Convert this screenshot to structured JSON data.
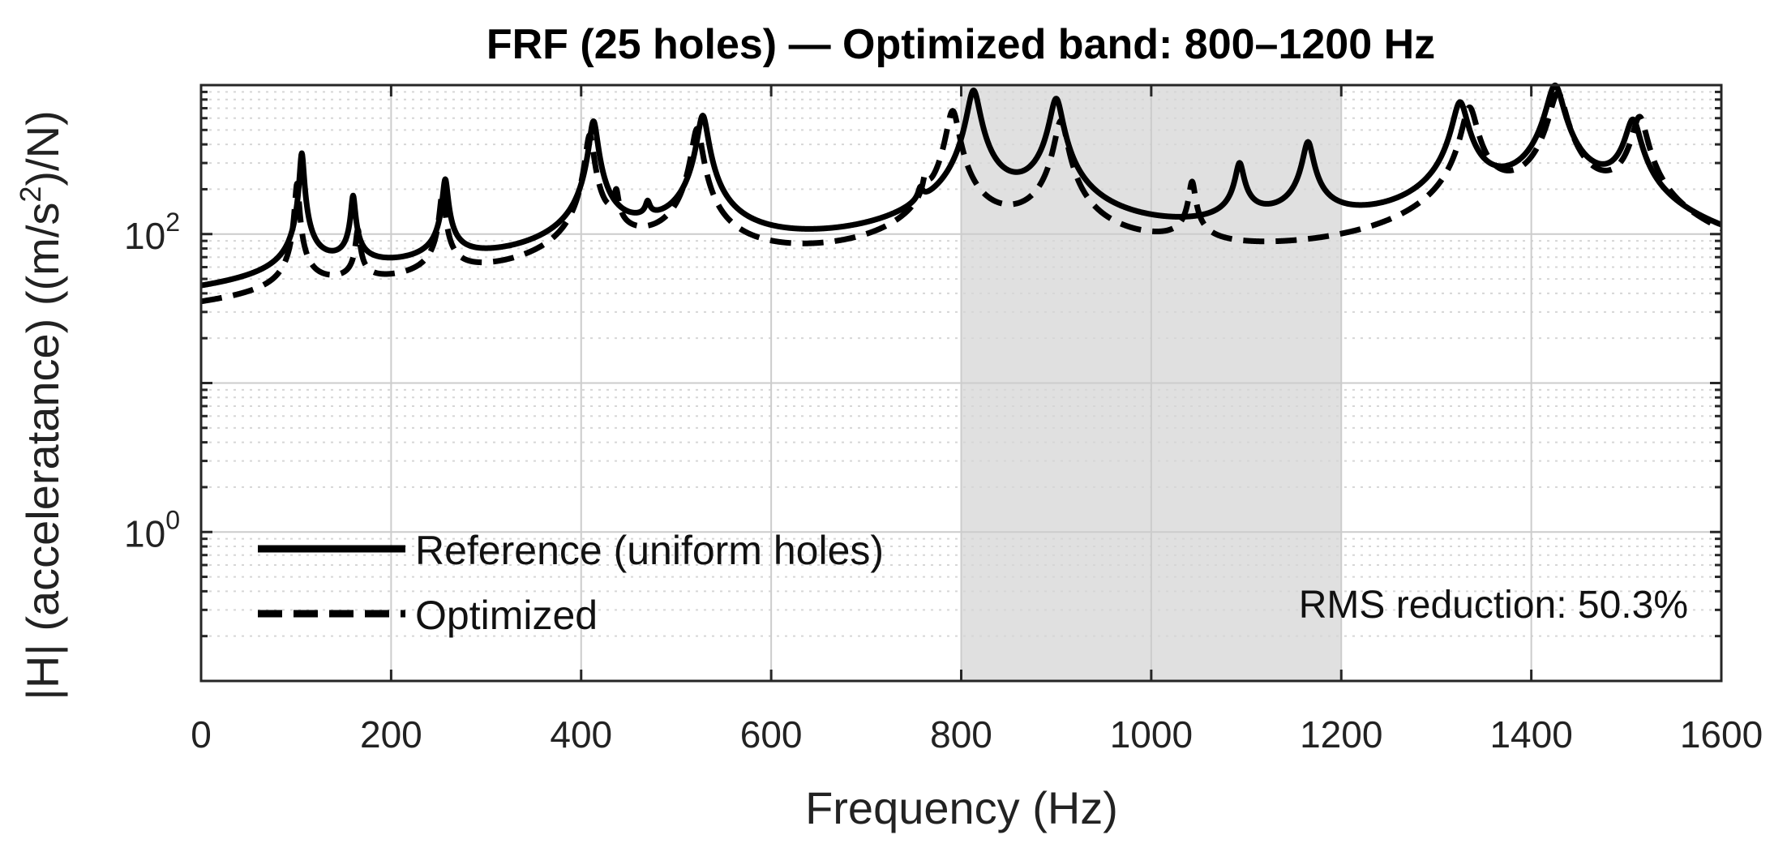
{
  "chart_data": {
    "type": "line",
    "title": "FRF (25 holes) — Optimized band: 800–1200 Hz",
    "xlabel": "Frequency (Hz)",
    "ylabel_prefix": "|H| (acceleratance)  ((m/s",
    "ylabel_sup": "2",
    "ylabel_suffix": ")/N)",
    "x_scale": "linear",
    "y_scale": "log",
    "xlim": [
      0,
      1600
    ],
    "ylim": [
      0.1,
      1000
    ],
    "x_ticks": [
      0,
      200,
      400,
      600,
      800,
      1000,
      1200,
      1400,
      1600
    ],
    "x_tick_labels": [
      "0",
      "200",
      "400",
      "600",
      "800",
      "1000",
      "1200",
      "1400",
      "1600"
    ],
    "y_ticks": [
      1,
      100
    ],
    "y_tick_base": "10",
    "y_tick_exponents": [
      "0",
      "2"
    ],
    "grid": true,
    "highlight_band": [
      800,
      1200
    ],
    "legend_position": "lower-left",
    "annotation": "RMS reduction: 50.3%",
    "colors": {
      "line": "#000000",
      "band": "#e0e0e0",
      "grid_major": "#cccccc",
      "grid_minor": "#d6d6d6"
    },
    "series": [
      {
        "name": "Reference (uniform holes)",
        "style": "solid",
        "floor": 3.0,
        "modes": [
          {
            "f": 106,
            "amp": 300,
            "bw": 2.0
          },
          {
            "f": 160,
            "amp": 120,
            "bw": 2.0
          },
          {
            "f": 257,
            "amp": 170,
            "bw": 2.5
          },
          {
            "f": 413,
            "amp": 500,
            "bw": 4.0
          },
          {
            "f": 470,
            "amp": 35,
            "bw": 2.0
          },
          {
            "f": 528,
            "amp": 550,
            "bw": 5.0
          },
          {
            "f": 757,
            "amp": 40,
            "bw": 2.0
          },
          {
            "f": 813,
            "amp": 820,
            "bw": 6.0
          },
          {
            "f": 900,
            "amp": 700,
            "bw": 6.0
          },
          {
            "f": 1093,
            "amp": 180,
            "bw": 4.0
          },
          {
            "f": 1165,
            "amp": 300,
            "bw": 5.0
          },
          {
            "f": 1325,
            "amp": 640,
            "bw": 7.0
          },
          {
            "f": 1425,
            "amp": 880,
            "bw": 8.0
          },
          {
            "f": 1507,
            "amp": 450,
            "bw": 7.0
          }
        ]
      },
      {
        "name": "Optimized",
        "style": "dashed",
        "floor": 2.8,
        "modes": [
          {
            "f": 101,
            "amp": 180,
            "bw": 2.0
          },
          {
            "f": 165,
            "amp": 60,
            "bw": 2.0
          },
          {
            "f": 254,
            "amp": 140,
            "bw": 2.5
          },
          {
            "f": 409,
            "amp": 400,
            "bw": 4.0
          },
          {
            "f": 437,
            "amp": 80,
            "bw": 2.0
          },
          {
            "f": 522,
            "amp": 450,
            "bw": 5.0
          },
          {
            "f": 762,
            "amp": 70,
            "bw": 2.0
          },
          {
            "f": 791,
            "amp": 600,
            "bw": 6.0
          },
          {
            "f": 905,
            "amp": 500,
            "bw": 6.0
          },
          {
            "f": 1043,
            "amp": 140,
            "bw": 3.0
          },
          {
            "f": 1335,
            "amp": 600,
            "bw": 7.0
          },
          {
            "f": 1428,
            "amp": 780,
            "bw": 8.0
          },
          {
            "f": 1514,
            "amp": 500,
            "bw": 7.0
          }
        ]
      }
    ]
  }
}
